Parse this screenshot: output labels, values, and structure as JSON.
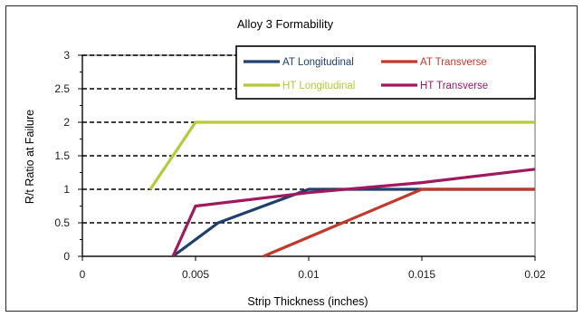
{
  "chart_data": {
    "type": "line",
    "title": "Alloy 3 Formability",
    "xlabel": "Strip Thickness (inches)",
    "ylabel": "R/t Ratio at Failure",
    "xlim": [
      0,
      0.02
    ],
    "ylim": [
      0,
      3
    ],
    "xticks": [
      0,
      0.005,
      0.01,
      0.015,
      0.02
    ],
    "xtick_labels": [
      "0",
      "0.005",
      "0.01",
      "0.015",
      "0.02"
    ],
    "yticks": [
      0,
      0.5,
      1,
      1.5,
      2,
      2.5,
      3
    ],
    "ytick_labels": [
      "0",
      "0.5",
      "1",
      "1.5",
      "2",
      "2.5",
      "3"
    ],
    "grid": "horizontal-dashed",
    "legend_position": "top-right",
    "series": [
      {
        "name": "AT Longitudinal",
        "color": "#1f3f6e",
        "x": [
          0.004,
          0.006,
          0.01,
          0.015,
          0.02
        ],
        "y": [
          0,
          0.5,
          1,
          1,
          1
        ]
      },
      {
        "name": "AT Transverse",
        "color": "#c0392b",
        "x": [
          0.008,
          0.015,
          0.02
        ],
        "y": [
          0,
          1,
          1
        ]
      },
      {
        "name": "HT Longitudinal",
        "color": "#b6c93a",
        "x": [
          0.003,
          0.005,
          0.01,
          0.015,
          0.02
        ],
        "y": [
          1,
          2,
          2,
          2,
          2
        ]
      },
      {
        "name": "HT Transverse",
        "color": "#a0195f",
        "x": [
          0.004,
          0.005,
          0.01,
          0.015,
          0.02
        ],
        "y": [
          0,
          0.75,
          0.95,
          1.1,
          1.3
        ]
      }
    ]
  }
}
